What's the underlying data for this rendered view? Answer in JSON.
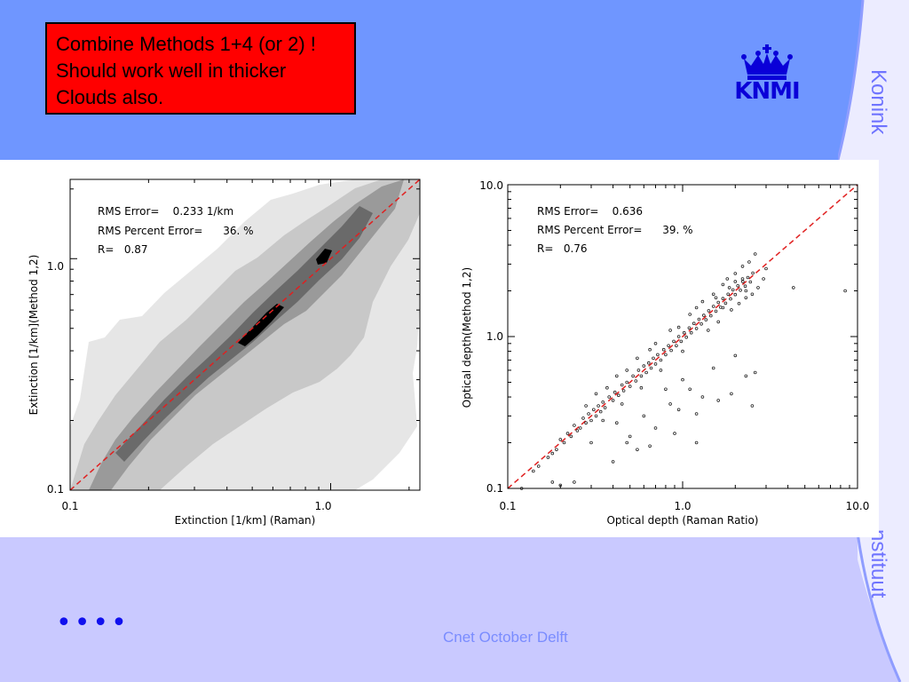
{
  "slide": {
    "note_lines": [
      "Combine Methods 1+4 (or 2) !",
      "Should work well in thicker",
      "Clouds also."
    ],
    "logo_text": "KNMI",
    "side_text_top": "Konink",
    "side_text_bottom": "nstituut",
    "bullet": "••••",
    "footer": "Cnet October Delft",
    "colors": {
      "top_band": "#6f96ff",
      "bottom_band": "#c9c9ff",
      "note_box": "#ff0000",
      "logo": "#0a00d8"
    }
  },
  "chart_data": [
    {
      "type": "heatmap",
      "log_axes": true,
      "xlabel": "Extinction [1/km] (Raman)",
      "ylabel": "Extinction [1/km](Method 1,2)",
      "xlim": [
        0.1,
        2.2
      ],
      "ylim": [
        0.1,
        2.2
      ],
      "xticks": [
        "0.1",
        "1.0"
      ],
      "yticks": [
        "0.1",
        "1.0"
      ],
      "stats": [
        "RMS Error=    0.233 1/km",
        "RMS Percent Error=      36. %",
        "R=   0.87"
      ],
      "one_to_one_line": true,
      "contour_levels": [
        "lightgray",
        "silver",
        "gray",
        "dimgray",
        "black"
      ]
    },
    {
      "type": "scatter",
      "log_axes": true,
      "xlabel": "Optical depth (Raman Ratio)",
      "ylabel": "Optical depth(Method 1,2)",
      "xlim": [
        0.1,
        10.0
      ],
      "ylim": [
        0.1,
        10.0
      ],
      "xticks": [
        "0.1",
        "1.0",
        "10.0"
      ],
      "yticks": [
        "0.1",
        "1.0",
        "10.0"
      ],
      "stats": [
        "RMS Error=    0.636",
        "RMS Percent Error=      39. %",
        "R=   0.76"
      ],
      "one_to_one_line": true,
      "points": [
        [
          0.12,
          0.1
        ],
        [
          0.14,
          0.13
        ],
        [
          0.15,
          0.14
        ],
        [
          0.17,
          0.16
        ],
        [
          0.18,
          0.17
        ],
        [
          0.19,
          0.18
        ],
        [
          0.2,
          0.21
        ],
        [
          0.21,
          0.2
        ],
        [
          0.22,
          0.23
        ],
        [
          0.23,
          0.22
        ],
        [
          0.24,
          0.26
        ],
        [
          0.25,
          0.24
        ],
        [
          0.26,
          0.25
        ],
        [
          0.27,
          0.29
        ],
        [
          0.28,
          0.27
        ],
        [
          0.29,
          0.31
        ],
        [
          0.3,
          0.28
        ],
        [
          0.31,
          0.33
        ],
        [
          0.32,
          0.3
        ],
        [
          0.33,
          0.35
        ],
        [
          0.34,
          0.32
        ],
        [
          0.35,
          0.37
        ],
        [
          0.36,
          0.34
        ],
        [
          0.38,
          0.4
        ],
        [
          0.4,
          0.38
        ],
        [
          0.41,
          0.43
        ],
        [
          0.43,
          0.41
        ],
        [
          0.45,
          0.48
        ],
        [
          0.46,
          0.44
        ],
        [
          0.48,
          0.5
        ],
        [
          0.5,
          0.47
        ],
        [
          0.52,
          0.55
        ],
        [
          0.54,
          0.51
        ],
        [
          0.56,
          0.6
        ],
        [
          0.58,
          0.55
        ],
        [
          0.6,
          0.64
        ],
        [
          0.62,
          0.58
        ],
        [
          0.64,
          0.67
        ],
        [
          0.66,
          0.62
        ],
        [
          0.68,
          0.72
        ],
        [
          0.7,
          0.66
        ],
        [
          0.72,
          0.76
        ],
        [
          0.75,
          0.7
        ],
        [
          0.78,
          0.82
        ],
        [
          0.8,
          0.76
        ],
        [
          0.83,
          0.87
        ],
        [
          0.86,
          0.81
        ],
        [
          0.89,
          0.93
        ],
        [
          0.92,
          0.87
        ],
        [
          0.95,
          1.0
        ],
        [
          0.98,
          0.93
        ],
        [
          1.02,
          1.06
        ],
        [
          1.05,
          0.99
        ],
        [
          1.09,
          1.14
        ],
        [
          1.12,
          1.06
        ],
        [
          1.16,
          1.22
        ],
        [
          1.2,
          1.13
        ],
        [
          1.24,
          1.3
        ],
        [
          1.28,
          1.21
        ],
        [
          1.32,
          1.38
        ],
        [
          1.36,
          1.29
        ],
        [
          1.41,
          1.48
        ],
        [
          1.45,
          1.37
        ],
        [
          1.5,
          1.58
        ],
        [
          1.55,
          1.47
        ],
        [
          1.6,
          1.68
        ],
        [
          1.65,
          1.56
        ],
        [
          1.7,
          1.78
        ],
        [
          1.76,
          1.66
        ],
        [
          1.82,
          1.9
        ],
        [
          1.88,
          1.77
        ],
        [
          1.94,
          2.03
        ],
        [
          2.0,
          1.89
        ],
        [
          2.07,
          2.16
        ],
        [
          2.14,
          2.02
        ],
        [
          2.21,
          2.3
        ],
        [
          2.28,
          2.15
        ],
        [
          2.36,
          2.45
        ],
        [
          2.44,
          2.29
        ],
        [
          2.52,
          2.62
        ],
        [
          0.95,
          1.15
        ],
        [
          1.3,
          1.7
        ],
        [
          1.8,
          2.4
        ],
        [
          2.2,
          2.9
        ],
        [
          2.6,
          3.5
        ],
        [
          1.1,
          1.4
        ],
        [
          0.7,
          0.9
        ],
        [
          0.55,
          0.72
        ],
        [
          0.42,
          0.55
        ],
        [
          0.32,
          0.42
        ],
        [
          1.5,
          1.9
        ],
        [
          2.0,
          2.6
        ],
        [
          2.4,
          3.1
        ],
        [
          1.7,
          2.2
        ],
        [
          0.85,
          1.1
        ],
        [
          1.2,
          1.55
        ],
        [
          0.65,
          0.82
        ],
        [
          0.48,
          0.6
        ],
        [
          0.37,
          0.46
        ],
        [
          0.28,
          0.35
        ],
        [
          1.0,
          0.8
        ],
        [
          1.4,
          1.1
        ],
        [
          1.9,
          1.5
        ],
        [
          2.3,
          1.8
        ],
        [
          0.75,
          0.6
        ],
        [
          0.58,
          0.46
        ],
        [
          0.45,
          0.36
        ],
        [
          0.35,
          0.28
        ],
        [
          1.6,
          1.25
        ],
        [
          2.1,
          1.65
        ],
        [
          0.8,
          0.45
        ],
        [
          1.0,
          0.52
        ],
        [
          1.3,
          0.4
        ],
        [
          1.6,
          0.38
        ],
        [
          1.9,
          0.42
        ],
        [
          2.3,
          0.55
        ],
        [
          0.6,
          0.3
        ],
        [
          0.7,
          0.25
        ],
        [
          0.9,
          0.23
        ],
        [
          1.2,
          0.31
        ],
        [
          0.5,
          0.22
        ],
        [
          0.55,
          0.18
        ],
        [
          0.65,
          0.19
        ],
        [
          0.95,
          0.33
        ],
        [
          1.1,
          0.45
        ],
        [
          1.5,
          0.62
        ],
        [
          2.0,
          0.75
        ],
        [
          2.5,
          0.35
        ],
        [
          0.42,
          0.27
        ],
        [
          0.48,
          0.2
        ],
        [
          0.3,
          0.2
        ],
        [
          0.4,
          0.15
        ],
        [
          0.18,
          0.11
        ],
        [
          0.2,
          0.105
        ],
        [
          0.24,
          0.11
        ],
        [
          1.2,
          0.2
        ],
        [
          0.85,
          0.36
        ],
        [
          2.6,
          0.58
        ],
        [
          4.3,
          2.1
        ],
        [
          8.5,
          2.0
        ],
        [
          3.0,
          2.8
        ],
        [
          2.9,
          2.4
        ],
        [
          2.7,
          2.1
        ],
        [
          2.5,
          1.9
        ],
        [
          2.3,
          2.0
        ],
        [
          2.2,
          2.4
        ],
        [
          2.0,
          2.3
        ],
        [
          1.85,
          2.1
        ],
        [
          1.7,
          1.55
        ],
        [
          1.55,
          1.8
        ]
      ]
    }
  ]
}
